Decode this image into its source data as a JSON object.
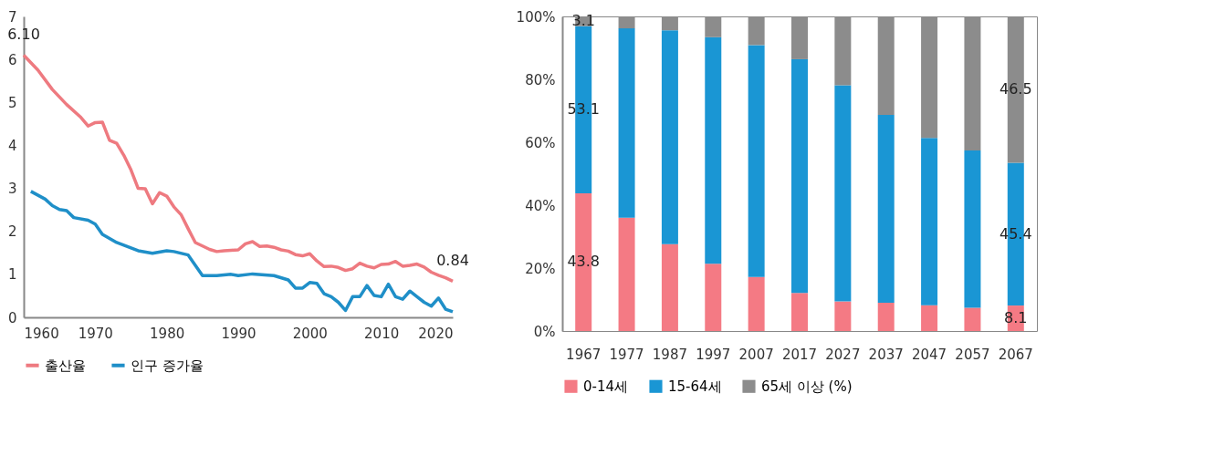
{
  "chart_data": [
    {
      "type": "line",
      "xlim": [
        1960,
        2020
      ],
      "xticks": [
        1960,
        1970,
        1980,
        1990,
        2000,
        2010,
        2020
      ],
      "ylim": [
        0,
        7
      ],
      "yticks": [
        0,
        1,
        2,
        3,
        4,
        5,
        6,
        7
      ],
      "grid": false,
      "legend": "bottom",
      "marker": "none",
      "line_style": "solid",
      "annotations": [
        {
          "text": "6.10",
          "x": 1960,
          "y": 6.1
        },
        {
          "text": "0.84",
          "x": 2020,
          "y": 0.84
        }
      ],
      "series": [
        {
          "name": "출산율",
          "color": "#ee7a80",
          "x": [
            1960,
            1962,
            1964,
            1966,
            1968,
            1969,
            1970,
            1971,
            1972,
            1973,
            1974,
            1975,
            1976,
            1977,
            1978,
            1979,
            1980,
            1981,
            1982,
            1983,
            1984,
            1985,
            1986,
            1987,
            1988,
            1989,
            1990,
            1991,
            1992,
            1993,
            1994,
            1995,
            1996,
            1997,
            1998,
            1999,
            2000,
            2001,
            2002,
            2003,
            2004,
            2005,
            2006,
            2007,
            2008,
            2009,
            2010,
            2011,
            2012,
            2013,
            2014,
            2015,
            2016,
            2017,
            2018,
            2019,
            2020
          ],
          "values": [
            6.1,
            5.75,
            5.3,
            4.95,
            4.65,
            4.45,
            4.53,
            4.54,
            4.12,
            4.05,
            3.77,
            3.43,
            3.0,
            2.99,
            2.64,
            2.9,
            2.82,
            2.57,
            2.39,
            2.06,
            1.74,
            1.66,
            1.58,
            1.53,
            1.55,
            1.56,
            1.57,
            1.71,
            1.76,
            1.65,
            1.66,
            1.63,
            1.57,
            1.54,
            1.46,
            1.43,
            1.48,
            1.31,
            1.18,
            1.19,
            1.16,
            1.09,
            1.13,
            1.26,
            1.19,
            1.15,
            1.23,
            1.24,
            1.3,
            1.19,
            1.21,
            1.24,
            1.17,
            1.05,
            0.98,
            0.92,
            0.84
          ]
        },
        {
          "name": "인구 증가율",
          "color": "#1f8fc8",
          "x": [
            1961,
            1963,
            1964,
            1965,
            1966,
            1967,
            1969,
            1970,
            1971,
            1973,
            1974,
            1976,
            1978,
            1980,
            1981,
            1983,
            1985,
            1987,
            1989,
            1990,
            1992,
            1995,
            1997,
            1998,
            1999,
            2000,
            2001,
            2002,
            2003,
            2004,
            2005,
            2006,
            2007,
            2008,
            2009,
            2010,
            2011,
            2012,
            2013,
            2014,
            2015,
            2016,
            2017,
            2018,
            2019,
            2020
          ],
          "values": [
            2.93,
            2.75,
            2.6,
            2.51,
            2.48,
            2.32,
            2.26,
            2.17,
            1.93,
            1.74,
            1.68,
            1.55,
            1.49,
            1.55,
            1.53,
            1.45,
            0.97,
            0.97,
            1.0,
            0.97,
            1.01,
            0.97,
            0.87,
            0.68,
            0.68,
            0.81,
            0.79,
            0.55,
            0.48,
            0.35,
            0.16,
            0.48,
            0.48,
            0.74,
            0.51,
            0.48,
            0.77,
            0.48,
            0.42,
            0.61,
            0.48,
            0.35,
            0.26,
            0.45,
            0.19,
            0.13
          ]
        }
      ]
    },
    {
      "type": "bar",
      "stacked": true,
      "categories": [
        "1967",
        "1977",
        "1987",
        "1997",
        "2007",
        "2017",
        "2027",
        "2037",
        "2047",
        "2057",
        "2067"
      ],
      "ylim": [
        0,
        100
      ],
      "yticks": [
        {
          "value": 0,
          "label": "0%"
        },
        {
          "value": 20,
          "label": "20%"
        },
        {
          "value": 40,
          "label": "40%"
        },
        {
          "value": 60,
          "label": "60%"
        },
        {
          "value": 80,
          "label": "80%"
        },
        {
          "value": 100,
          "label": "100%"
        }
      ],
      "grid": false,
      "legend": "bottom",
      "series": [
        {
          "name": "0-14세",
          "color": "#f47a84",
          "values": [
            43.8,
            36.0,
            27.6,
            21.4,
            17.2,
            12.1,
            9.4,
            9.0,
            8.2,
            7.4,
            8.1
          ],
          "value_labels": [
            "43.8",
            null,
            null,
            null,
            null,
            null,
            null,
            null,
            null,
            null,
            "8.1"
          ]
        },
        {
          "name": "15-64세",
          "color": "#1a96d4",
          "values": [
            53.1,
            60.2,
            68.0,
            72.0,
            73.7,
            74.3,
            68.7,
            59.7,
            53.2,
            50.0,
            45.4
          ],
          "value_labels": [
            "53.1",
            null,
            null,
            null,
            null,
            null,
            null,
            null,
            null,
            null,
            "45.4"
          ]
        },
        {
          "name": "65세 이상 (%)",
          "color": "#8c8c8c",
          "values": [
            3.1,
            3.8,
            4.4,
            6.6,
            9.1,
            13.6,
            21.9,
            31.3,
            38.6,
            42.6,
            46.5
          ],
          "value_labels": [
            "3.1",
            null,
            null,
            null,
            null,
            null,
            null,
            null,
            null,
            null,
            "46.5"
          ]
        }
      ]
    }
  ]
}
